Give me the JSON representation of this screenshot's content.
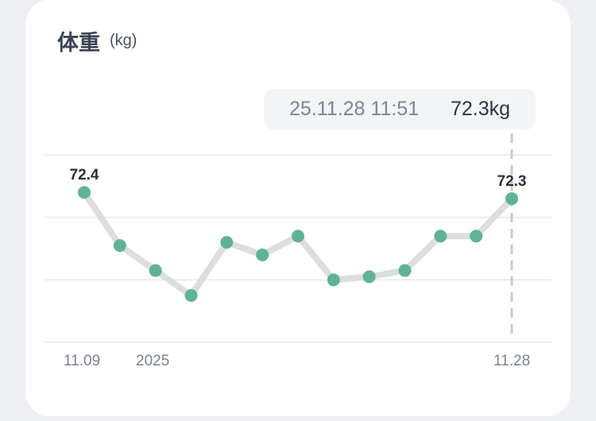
{
  "card": {
    "title": "体重",
    "unit": "(kg)"
  },
  "tooltip": {
    "time": "25.11.28 11:51",
    "value": "72.3kg"
  },
  "x_labels": {
    "start": "11.09",
    "year": "2025",
    "end": "11.28"
  },
  "colors": {
    "point": "#5fb394",
    "line": "#dcdde0",
    "grid": "#e6e7ea",
    "guide": "#c8cacf"
  },
  "chart_data": {
    "type": "line",
    "series": [
      {
        "values": [
          72.4,
          71.55,
          71.15,
          70.75,
          71.6,
          71.4,
          71.7,
          71.0,
          71.05,
          71.15,
          71.7,
          71.7,
          72.3
        ]
      }
    ],
    "ylim": [
      70.0,
      73.0
    ],
    "point_labels": [
      {
        "index": 0,
        "text": "72.4"
      },
      {
        "index": 12,
        "text": "72.3"
      }
    ],
    "grid": true
  }
}
